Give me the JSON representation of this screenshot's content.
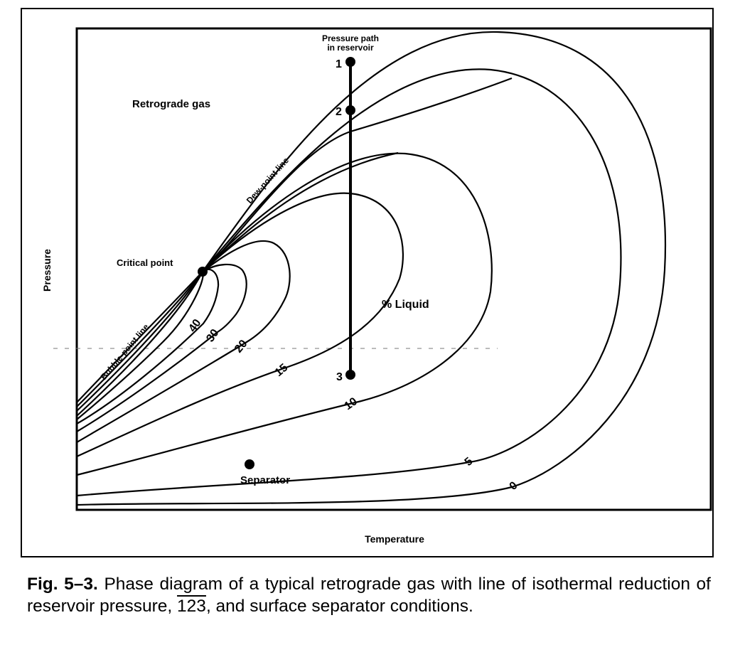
{
  "figure": {
    "x_axis_label": "Temperature",
    "y_axis_label": "Pressure",
    "region_label": "Retrograde gas",
    "pressure_path_label_line1": "Pressure path",
    "pressure_path_label_line2": "in reservoir",
    "points": {
      "p1": "1",
      "p2": "2",
      "p3": "3"
    },
    "critical_point_label": "Critical point",
    "dew_point_label": "Dew-point line",
    "bubble_point_label": "Bubble-point line",
    "liquid_label": "% Liquid",
    "separator_label": "Separator",
    "contour_labels": {
      "c40": "40",
      "c30": "30",
      "c20": "20",
      "c15": "15",
      "c10": "10",
      "c5": "5",
      "c0": "0"
    }
  },
  "caption": {
    "number": "Fig. 5–3.",
    "text_before": "Phase diagram of a typical retrograde gas with line of isothermal reduction of reservoir pressure,",
    "path_ref": "123",
    "text_after": ", and surface separator conditions."
  }
}
